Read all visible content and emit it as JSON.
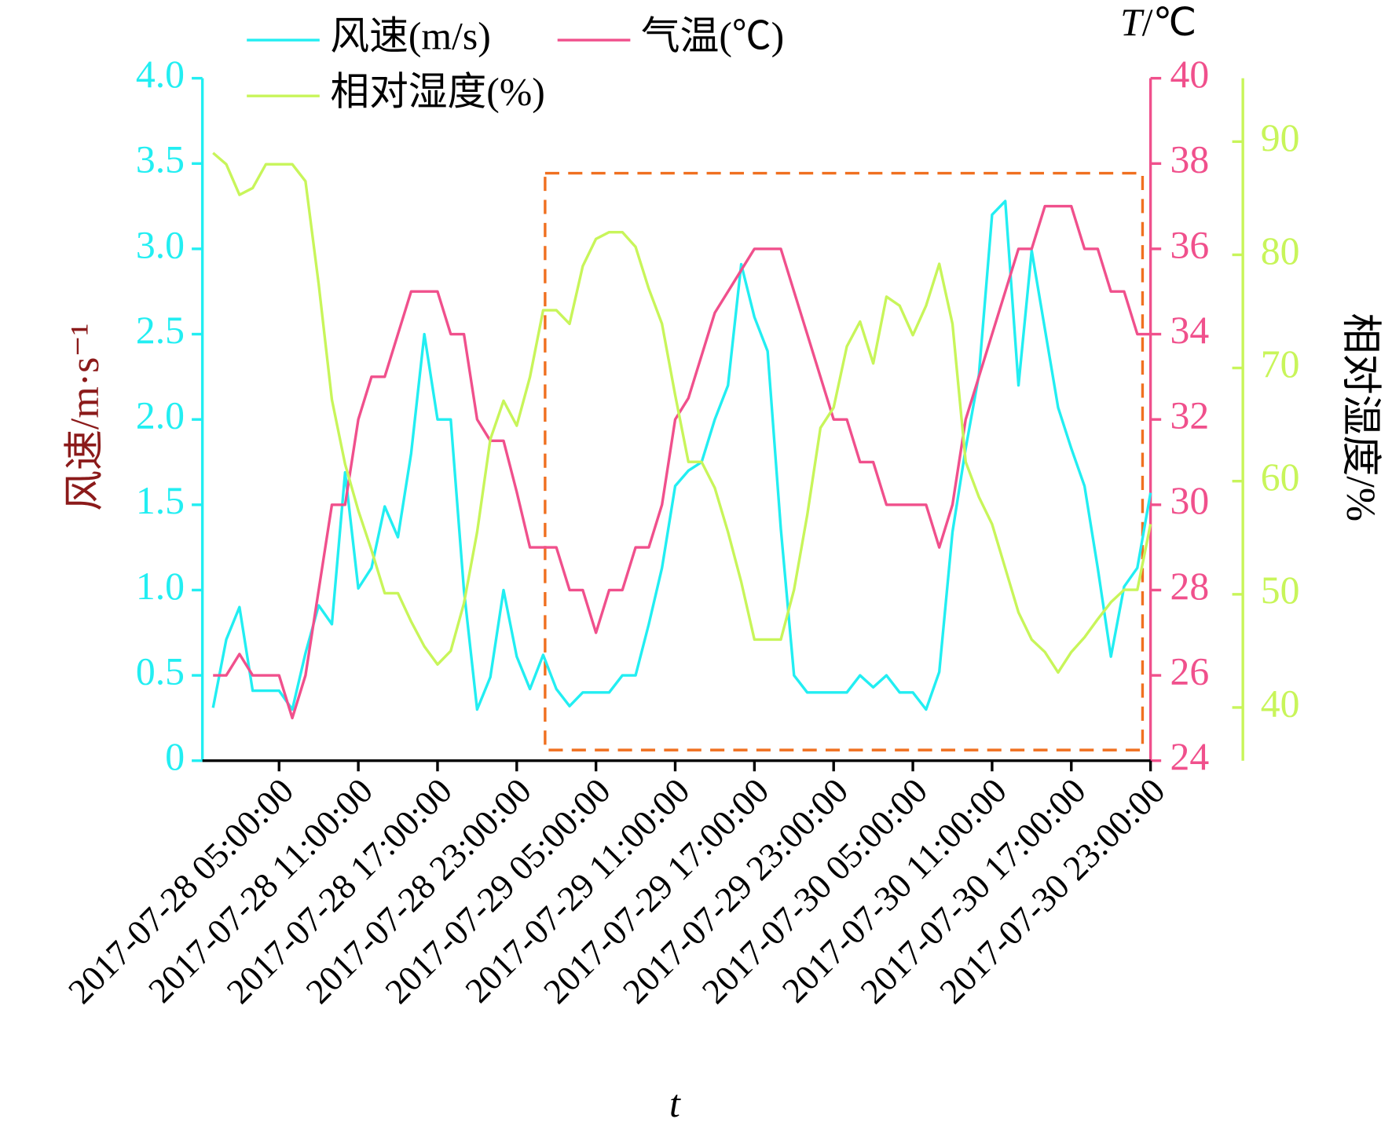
{
  "chart_data": {
    "type": "line",
    "x_label": "t",
    "y_label": "风速/m·s⁻¹",
    "y2_label": "T/℃",
    "y3_label": "相对湿度/%",
    "legend": "top-left",
    "x": [
      "2017-07-28 00:00:00",
      "2017-07-28 01:00:00",
      "2017-07-28 02:00:00",
      "2017-07-28 03:00:00",
      "2017-07-28 04:00:00",
      "2017-07-28 05:00:00",
      "2017-07-28 06:00:00",
      "2017-07-28 07:00:00",
      "2017-07-28 08:00:00",
      "2017-07-28 09:00:00",
      "2017-07-28 10:00:00",
      "2017-07-28 11:00:00",
      "2017-07-28 12:00:00",
      "2017-07-28 13:00:00",
      "2017-07-28 14:00:00",
      "2017-07-28 15:00:00",
      "2017-07-28 16:00:00",
      "2017-07-28 17:00:00",
      "2017-07-28 18:00:00",
      "2017-07-28 19:00:00",
      "2017-07-28 20:00:00",
      "2017-07-28 21:00:00",
      "2017-07-28 22:00:00",
      "2017-07-28 23:00:00",
      "2017-07-29 00:00:00",
      "2017-07-29 01:00:00",
      "2017-07-29 02:00:00",
      "2017-07-29 03:00:00",
      "2017-07-29 04:00:00",
      "2017-07-29 05:00:00",
      "2017-07-29 06:00:00",
      "2017-07-29 07:00:00",
      "2017-07-29 08:00:00",
      "2017-07-29 09:00:00",
      "2017-07-29 10:00:00",
      "2017-07-29 11:00:00",
      "2017-07-29 12:00:00",
      "2017-07-29 13:00:00",
      "2017-07-29 14:00:00",
      "2017-07-29 15:00:00",
      "2017-07-29 16:00:00",
      "2017-07-29 17:00:00",
      "2017-07-29 18:00:00",
      "2017-07-29 19:00:00",
      "2017-07-29 20:00:00",
      "2017-07-29 21:00:00",
      "2017-07-29 22:00:00",
      "2017-07-29 23:00:00",
      "2017-07-30 00:00:00",
      "2017-07-30 01:00:00",
      "2017-07-30 02:00:00",
      "2017-07-30 03:00:00",
      "2017-07-30 04:00:00",
      "2017-07-30 05:00:00",
      "2017-07-30 06:00:00",
      "2017-07-30 07:00:00",
      "2017-07-30 08:00:00",
      "2017-07-30 09:00:00",
      "2017-07-30 10:00:00",
      "2017-07-30 11:00:00",
      "2017-07-30 12:00:00",
      "2017-07-30 13:00:00",
      "2017-07-30 14:00:00",
      "2017-07-30 15:00:00",
      "2017-07-30 16:00:00",
      "2017-07-30 17:00:00",
      "2017-07-30 18:00:00",
      "2017-07-30 19:00:00",
      "2017-07-30 20:00:00",
      "2017-07-30 21:00:00",
      "2017-07-30 22:00:00",
      "2017-07-30 23:00:00"
    ],
    "xticks": [
      "2017-07-28 05:00:00",
      "2017-07-28 11:00:00",
      "2017-07-28 17:00:00",
      "2017-07-28 23:00:00",
      "2017-07-29 05:00:00",
      "2017-07-29 11:00:00",
      "2017-07-29 17:00:00",
      "2017-07-29 23:00:00",
      "2017-07-30 05:00:00",
      "2017-07-30 11:00:00",
      "2017-07-30 17:00:00",
      "2017-07-30 23:00:00"
    ],
    "ylim": [
      0,
      4
    ],
    "yticks": [
      0,
      0.5,
      {
        "value": 1,
        "label": "1.0"
      },
      1.5,
      {
        "value": 2,
        "label": "2.0"
      },
      2.5,
      {
        "value": 3,
        "label": "3.0"
      },
      3.5,
      {
        "value": 4,
        "label": "4.0"
      }
    ],
    "y2lim": [
      24,
      40
    ],
    "y2ticks": [
      24,
      26,
      28,
      30,
      32,
      34,
      36,
      38,
      40
    ],
    "y3lim": [
      35.3,
      95.6
    ],
    "y3ticks": [
      40,
      50,
      60,
      70,
      80,
      90
    ],
    "series": [
      {
        "name": "风速(m/s)",
        "color": "#22eef2",
        "axis": "y",
        "values": [
          0.31,
          0.71,
          0.9,
          0.41,
          0.41,
          0.41,
          0.3,
          0.63,
          0.91,
          0.8,
          1.69,
          1.01,
          1.13,
          1.49,
          1.31,
          1.8,
          2.5,
          2.0,
          2.0,
          1.0,
          0.3,
          0.49,
          1.0,
          0.61,
          0.42,
          0.62,
          0.42,
          0.32,
          0.4,
          0.4,
          0.4,
          0.5,
          0.5,
          0.8,
          1.13,
          1.61,
          1.7,
          1.75,
          2.0,
          2.2,
          2.91,
          2.6,
          2.4,
          1.36,
          0.5,
          0.4,
          0.4,
          0.4,
          0.4,
          0.5,
          0.43,
          0.5,
          0.4,
          0.4,
          0.3,
          0.52,
          1.34,
          1.83,
          2.26,
          3.2,
          3.28,
          2.2,
          2.99,
          2.53,
          2.07,
          1.83,
          1.61,
          1.13,
          0.61,
          1.02,
          1.13,
          1.57
        ]
      },
      {
        "name": "气温(℃)",
        "color": "#f0508c",
        "axis": "y2",
        "values": [
          26,
          26,
          26.5,
          26,
          26,
          26,
          25,
          26,
          28,
          30,
          30,
          32,
          33,
          33,
          34,
          35,
          35,
          35,
          34,
          34,
          32,
          31.5,
          31.5,
          30.3,
          29,
          29,
          29,
          28,
          28,
          27,
          28,
          28,
          29,
          29,
          30,
          32,
          32.5,
          33.5,
          34.5,
          35,
          35.5,
          36,
          36,
          36,
          35,
          34,
          33,
          32,
          32,
          31,
          31,
          30,
          30,
          30,
          30,
          29,
          30,
          32,
          33,
          34,
          35,
          36,
          36,
          37,
          37,
          37,
          36,
          36,
          35,
          35,
          34,
          34
        ]
      },
      {
        "name": "相对湿度(%)",
        "color": "#c8f55a",
        "axis": "y3",
        "values": [
          89,
          88,
          85.3,
          85.9,
          88,
          88,
          88,
          86.5,
          77.4,
          67.2,
          61.5,
          57.4,
          53.9,
          50.1,
          50.1,
          47.6,
          45.4,
          43.8,
          45,
          49.2,
          55.5,
          63.7,
          67.1,
          64.9,
          69.2,
          75.1,
          75.1,
          73.9,
          79,
          81.4,
          82,
          82,
          80.7,
          77,
          73.9,
          67.6,
          61.7,
          61.7,
          59.4,
          55.5,
          51.1,
          46,
          46,
          46,
          50.4,
          57,
          64.7,
          66.5,
          71.9,
          74.1,
          70.4,
          76.3,
          75.5,
          72.9,
          75.5,
          79.2,
          73.9,
          61.7,
          58.6,
          56.2,
          52.3,
          48.4,
          46,
          44.9,
          43.1,
          44.9,
          46.2,
          47.8,
          49.3,
          50.4,
          50.4,
          56.2
        ]
      }
    ]
  }
}
